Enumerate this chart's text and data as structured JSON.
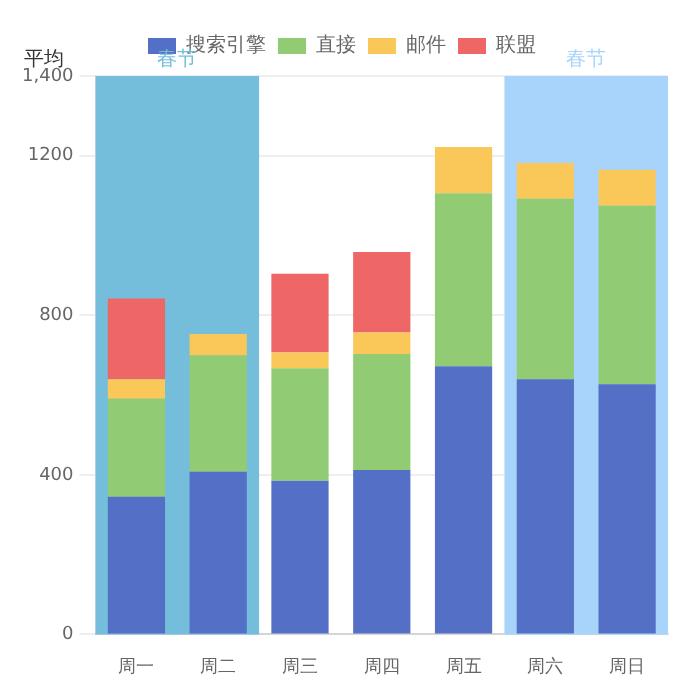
{
  "chart_data": {
    "type": "bar",
    "stacked": true,
    "ylabel": "平均",
    "categories": [
      "周一",
      "周二",
      "周三",
      "周四",
      "周五",
      "周六",
      "周日"
    ],
    "series": [
      {
        "name": "搜索引擎",
        "color": "#5470c6",
        "values": [
          345,
          408,
          385,
          412,
          672,
          640,
          627
        ]
      },
      {
        "name": "直接",
        "color": "#91cc75",
        "values": [
          246,
          291,
          282,
          291,
          434,
          452,
          448
        ]
      },
      {
        "name": "邮件",
        "color": "#fac858",
        "values": [
          49,
          54,
          40,
          54,
          116,
          90,
          90
        ]
      },
      {
        "name": "联盟",
        "color": "#ee6666",
        "values": [
          202,
          null,
          197,
          202,
          null,
          null,
          null
        ]
      }
    ],
    "ylim": [
      0,
      1400
    ],
    "yticks": [
      0,
      400,
      800,
      1200,
      {
        "value": 1400,
        "label": "1,400"
      }
    ],
    "bands": [
      {
        "axis": "x",
        "from": "周一",
        "to": "周二",
        "label": "春节",
        "color": "#74bedc"
      },
      {
        "axis": "x",
        "from": "周六",
        "to": "周日",
        "label": "春节",
        "color": "#a8d4fb"
      }
    ],
    "grid": "y",
    "legend": "top"
  }
}
